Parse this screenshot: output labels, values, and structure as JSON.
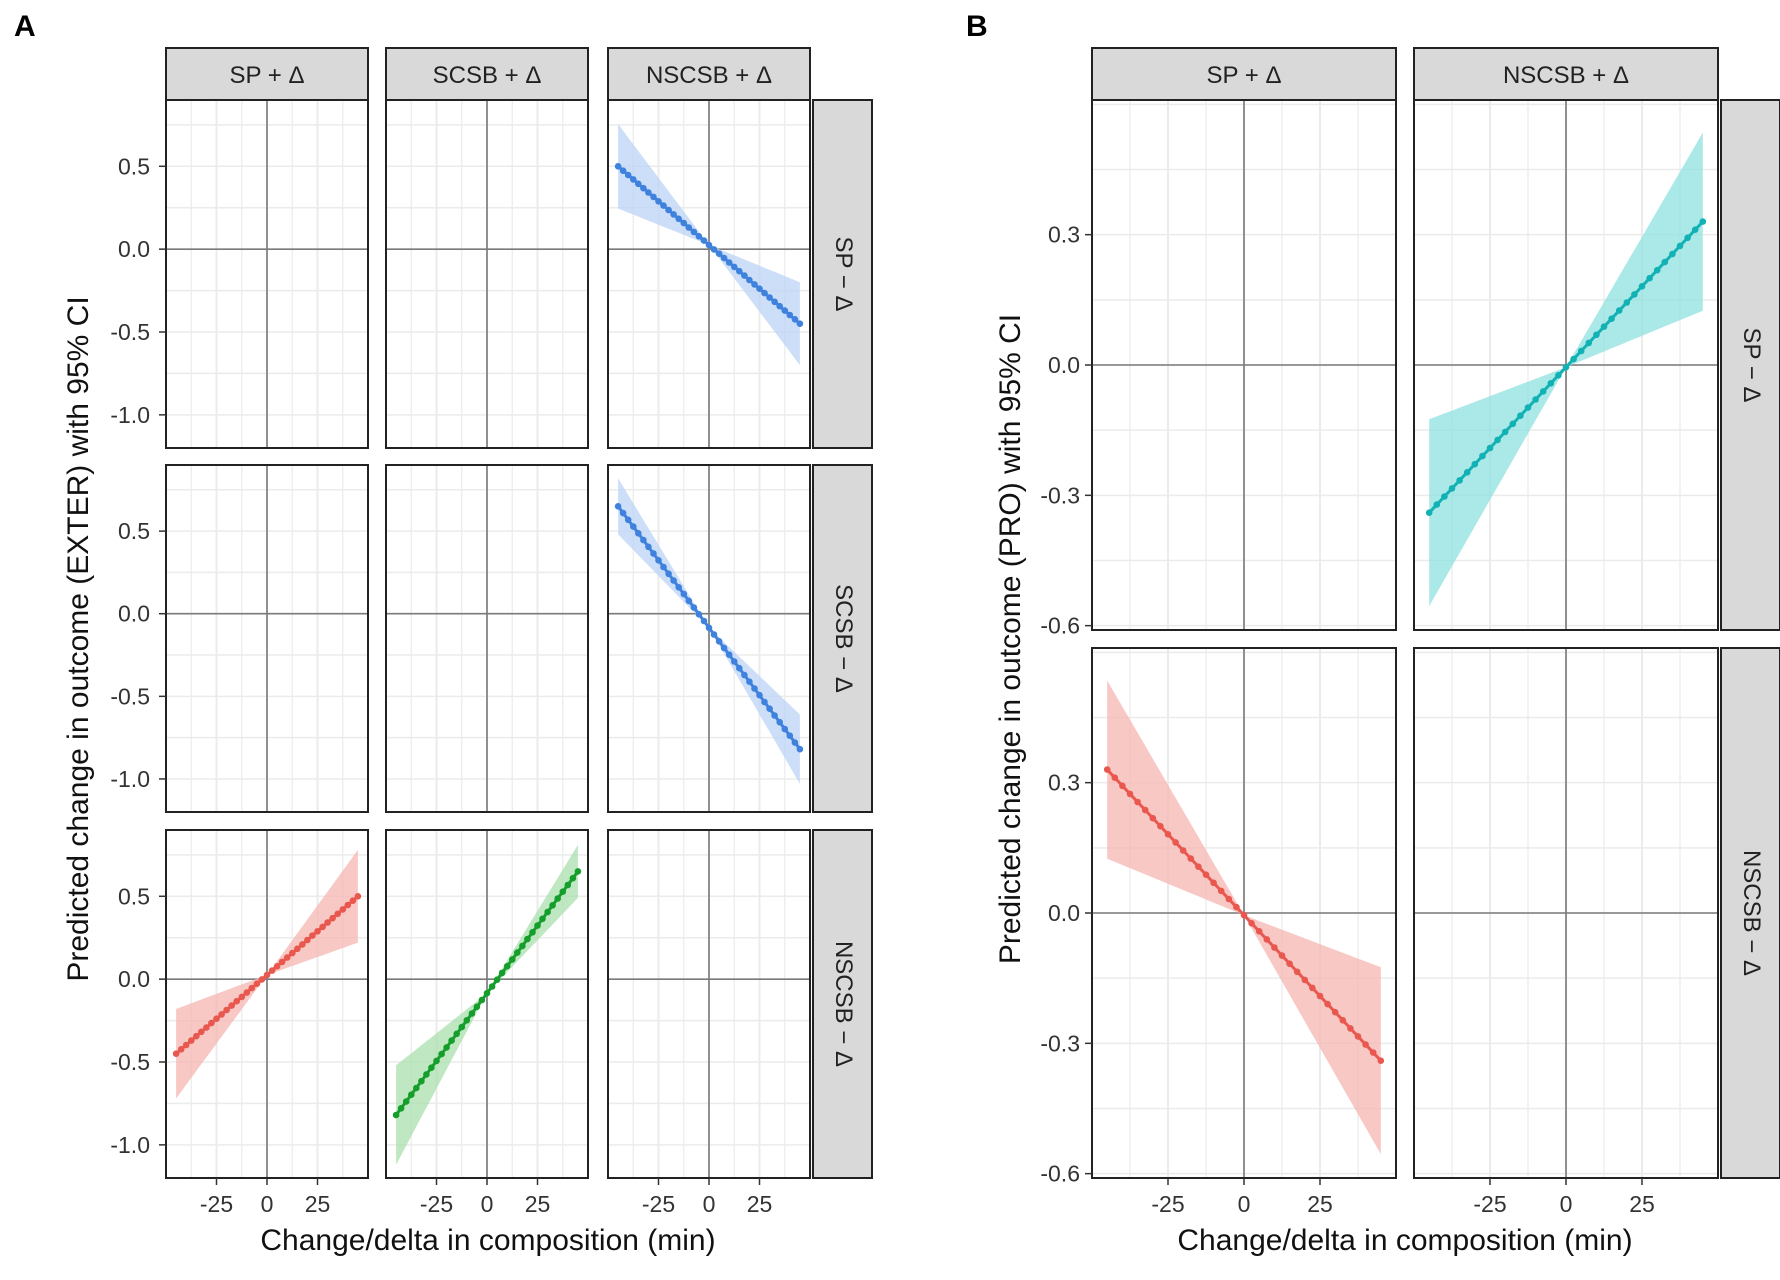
{
  "colors": {
    "red": "#e8584f",
    "red_fill": "#f6b5b1",
    "blue": "#3f82dd",
    "blue_fill": "#bcd3f6",
    "green": "#159e2b",
    "green_fill": "#a9dfae",
    "teal": "#12b2b4",
    "teal_fill": "#8fe0e0",
    "strip": "#d9d9d9",
    "grid": "#ebebeb",
    "axis_zero": "#7a7a7a"
  },
  "chart_data": [
    {
      "type": "line",
      "panel": "A",
      "title": "",
      "xlabel": "Change/delta in composition (min)",
      "ylabel": "Predicted change in outcome (EXTER) with 95% CI",
      "xlim": [
        -50,
        50
      ],
      "ylim": [
        -1.2,
        0.9
      ],
      "x_ticks": [
        -25,
        0,
        25
      ],
      "x_tick_labels": [
        "-25",
        "0",
        "25"
      ],
      "y_ticks": [
        0.5,
        0.0,
        -0.5,
        -1.0
      ],
      "y_tick_labels": [
        "0.5",
        "0.0",
        "-0.5",
        "-1.0"
      ],
      "col_strips": [
        "SP + Δ",
        "SCSB + Δ",
        "NSCSB + Δ"
      ],
      "row_strips": [
        "SP − Δ",
        "SCSB − Δ",
        "NSCSB − Δ"
      ],
      "series": [
        {
          "row": 0,
          "col": 2,
          "color": "blue",
          "x_min": -45,
          "x_max": 45,
          "y_start": 0.5,
          "y_end": -0.45,
          "ci_lo_start": 0.25,
          "ci_hi_start": 0.76,
          "ci_lo_end": -0.68,
          "ci_hi_end": -0.18
        },
        {
          "row": 1,
          "col": 2,
          "color": "blue",
          "x_min": -45,
          "x_max": 45,
          "y_start": 0.65,
          "y_end": -0.82,
          "ci_lo_start": 0.48,
          "ci_hi_start": 0.82,
          "ci_lo_end": -1.02,
          "ci_hi_end": -0.6
        },
        {
          "row": 2,
          "col": 0,
          "color": "red",
          "x_min": -45,
          "x_max": 45,
          "y_start": -0.45,
          "y_end": 0.5,
          "ci_lo_start": -0.72,
          "ci_hi_start": -0.18,
          "ci_lo_end": 0.2,
          "ci_hi_end": 0.76
        },
        {
          "row": 2,
          "col": 1,
          "color": "green",
          "x_min": -45,
          "x_max": 45,
          "y_start": -0.82,
          "y_end": 0.65,
          "ci_lo_start": -1.12,
          "ci_hi_start": -0.52,
          "ci_lo_end": 0.5,
          "ci_hi_end": 0.82
        }
      ]
    },
    {
      "type": "line",
      "panel": "B",
      "title": "",
      "xlabel": "Change/delta in composition (min)",
      "ylabel": "Predicted change in outcome (PRO) with 95% CI",
      "xlim": [
        -50,
        50
      ],
      "ylim": [
        -0.61,
        0.61
      ],
      "x_ticks": [
        -25,
        0,
        25
      ],
      "x_tick_labels": [
        "-25",
        "0",
        "25"
      ],
      "y_ticks": [
        0.3,
        0.0,
        -0.3,
        -0.6
      ],
      "y_tick_labels": [
        "0.3",
        "0.0",
        "-0.3",
        "-0.6"
      ],
      "col_strips": [
        "SP + Δ",
        "NSCSB + Δ"
      ],
      "row_strips": [
        "SP − Δ",
        "NSCSB − Δ"
      ],
      "series": [
        {
          "row": 0,
          "col": 1,
          "color": "teal",
          "x_min": -45,
          "x_max": 45,
          "y_start": -0.34,
          "y_end": 0.33,
          "ci_lo_start": -0.55,
          "ci_hi_start": -0.12,
          "ci_lo_end": 0.12,
          "ci_hi_end": 0.53
        },
        {
          "row": 1,
          "col": 0,
          "color": "red",
          "x_min": -45,
          "x_max": 45,
          "y_start": 0.33,
          "y_end": -0.34,
          "ci_lo_start": 0.12,
          "ci_hi_start": 0.53,
          "ci_lo_end": -0.55,
          "ci_hi_end": -0.12
        }
      ]
    }
  ],
  "panel_labels": [
    "A",
    "B"
  ]
}
